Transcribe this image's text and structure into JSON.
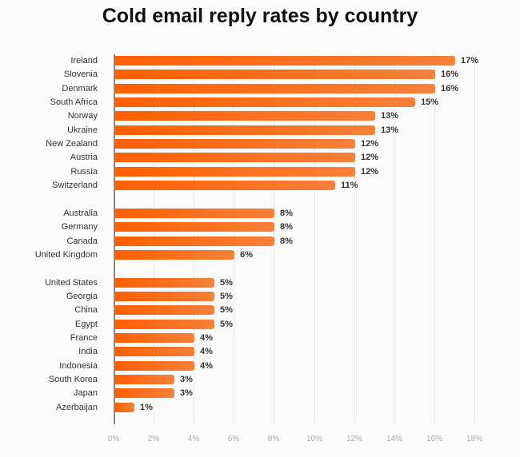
{
  "chart_data": {
    "type": "bar",
    "orientation": "horizontal",
    "title": "Cold email reply rates by country",
    "xlabel": "",
    "ylabel": "",
    "xlim": [
      0,
      18
    ],
    "x_ticks": [
      "0%",
      "2%",
      "4%",
      "6%",
      "8%",
      "10%",
      "12%",
      "14%",
      "16%",
      "18%"
    ],
    "grid": true,
    "unit": "%",
    "bar_color": "#ff6a10",
    "groups": [
      {
        "categories": [
          "Ireland",
          "Slovenia",
          "Denmark",
          "South Africa",
          "Norway",
          "Ukraine",
          "New Zealand",
          "Austria",
          "Russia",
          "Switzerland"
        ],
        "values": [
          17,
          16,
          16,
          15,
          13,
          13,
          12,
          12,
          12,
          11
        ],
        "labels": [
          "17%",
          "16%",
          "16%",
          "15%",
          "13%",
          "13%",
          "12%",
          "12%",
          "12%",
          "11%"
        ]
      },
      {
        "categories": [
          "Australia",
          "Germany",
          "Canada",
          "United Kingdom"
        ],
        "values": [
          8,
          8,
          8,
          6
        ],
        "labels": [
          "8%",
          "8%",
          "8%",
          "6%"
        ]
      },
      {
        "categories": [
          "United States",
          "Georgia",
          "China",
          "Egypt",
          "France",
          "India",
          "Indonesia",
          "South Korea",
          "Japan",
          "Azerbaijan"
        ],
        "values": [
          5,
          5,
          5,
          5,
          4,
          4,
          4,
          3,
          3,
          1
        ],
        "labels": [
          "5%",
          "5%",
          "5%",
          "5%",
          "4%",
          "4%",
          "4%",
          "3%",
          "3%",
          "1%"
        ]
      }
    ],
    "categories": [
      "Ireland",
      "Slovenia",
      "Denmark",
      "South Africa",
      "Norway",
      "Ukraine",
      "New Zealand",
      "Austria",
      "Russia",
      "Switzerland",
      "Australia",
      "Germany",
      "Canada",
      "United Kingdom",
      "United States",
      "Georgia",
      "China",
      "Egypt",
      "France",
      "India",
      "Indonesia",
      "South Korea",
      "Japan",
      "Azerbaijan"
    ],
    "values": [
      17,
      16,
      16,
      15,
      13,
      13,
      12,
      12,
      12,
      11,
      8,
      8,
      8,
      6,
      5,
      5,
      5,
      5,
      4,
      4,
      4,
      3,
      3,
      1
    ]
  }
}
